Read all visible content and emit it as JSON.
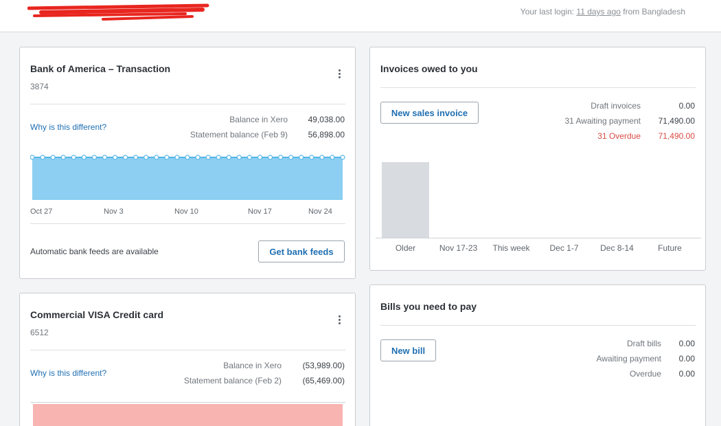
{
  "header": {
    "last_login_prefix": "Your last login:",
    "last_login_when": "11 days ago",
    "last_login_suffix": "from Bangladesh"
  },
  "bank_card": {
    "title": "Bank of America – Transaction",
    "account": "3874",
    "why_link": "Why is this different?",
    "balance_xero_label": "Balance in Xero",
    "balance_xero_value": "49,038.00",
    "statement_label": "Statement balance (Feb 9)",
    "statement_value": "56,898.00",
    "feeds_text": "Automatic bank feeds are available",
    "feeds_button": "Get bank feeds",
    "colors": {
      "area": "#8ccff2",
      "line": "#55b6e8"
    },
    "chart_data": {
      "type": "area",
      "x_ticks": [
        "Oct 27",
        "Nov 3",
        "Nov 10",
        "Nov 17",
        "Nov 24"
      ],
      "points": 31,
      "grid": false
    }
  },
  "visa_card": {
    "title": "Commercial VISA Credit card",
    "account": "6512",
    "why_link": "Why is this different?",
    "balance_xero_label": "Balance in Xero",
    "balance_xero_value": "(53,989.00)",
    "statement_label": "Statement balance (Feb 2)",
    "statement_value": "(65,469.00)",
    "colors": {
      "area": "#f8b4b1"
    }
  },
  "invoices_card": {
    "title": "Invoices owed to you",
    "new_button": "New sales invoice",
    "rows": [
      {
        "label": "Draft invoices",
        "value": "0.00",
        "status": "normal"
      },
      {
        "label": "31 Awaiting payment",
        "value": "71,490.00",
        "status": "normal"
      },
      {
        "label": "31 Overdue",
        "value": "71,490.00",
        "status": "overdue"
      }
    ],
    "colors": {
      "bar": "#d8dbdf",
      "overdue": "#d94a43"
    },
    "chart_data": {
      "type": "bar",
      "categories": [
        "Older",
        "Nov 17-23",
        "This week",
        "Dec 1-7",
        "Dec 8-14",
        "Future"
      ],
      "values": [
        71490,
        0,
        0,
        0,
        0,
        0
      ]
    }
  },
  "bills_card": {
    "title": "Bills you need to pay",
    "new_button": "New bill",
    "rows": [
      {
        "label": "Draft bills",
        "value": "0.00"
      },
      {
        "label": "Awaiting payment",
        "value": "0.00"
      },
      {
        "label": "Overdue",
        "value": "0.00"
      }
    ]
  }
}
